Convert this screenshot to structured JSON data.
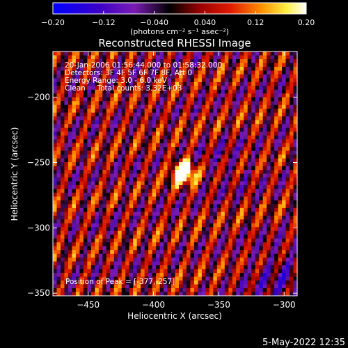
{
  "chart_data": {
    "type": "heatmap",
    "title": "Reconstructed RHESSI Image",
    "xlabel": "Heliocentric X (arcsec)",
    "ylabel": "Heliocentric Y (arcsec)",
    "xlim": [
      -477,
      -290
    ],
    "ylim": [
      -352,
      -165
    ],
    "x_ticks": [
      -450,
      -400,
      -350,
      -300
    ],
    "x_tick_labels": [
      "−450",
      "−400",
      "−350",
      "−300"
    ],
    "y_ticks": [
      -200,
      -250,
      -300,
      -350
    ],
    "y_tick_labels": [
      "−200",
      "−250",
      "−300",
      "−350"
    ],
    "colorbar": {
      "min": -0.2,
      "max": 0.2,
      "ticks": [
        -0.2,
        -0.12,
        -0.04,
        0.04,
        0.12,
        0.2
      ],
      "tick_labels": [
        "−0.20",
        "−0.12",
        "−0.040",
        "0.040",
        "0.12",
        "0.20"
      ],
      "unit_label": "(photons cm⁻² s⁻¹ asec⁻²)",
      "colormap": [
        "#0000ff",
        "#3a00c8",
        "#7a1cb4",
        "#000000",
        "#9a0000",
        "#e01a00",
        "#ff8c00",
        "#ffee40",
        "#ffffff"
      ]
    },
    "peak": {
      "x": -377,
      "y": -257
    },
    "annotations": [
      "20-Jan-2006 01:56:44.000 to 01:58:32.000",
      "Detectors: 3F 4F 5F 6F 7F 8F, Att 0",
      "Energy Range: 3.0 - 6.0 keV",
      "Clean     Total counts: 3.32E+03"
    ],
    "peak_label": "Position of Peak = [-377,-257]",
    "grid": false
  },
  "footer": {
    "timestamp": "5-May-2022 12:35"
  }
}
